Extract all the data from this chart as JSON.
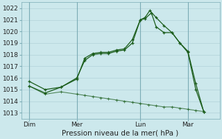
{
  "xlabel": "Pression niveau de la mer( hPa )",
  "bg_color": "#cce8ec",
  "grid_color": "#aacdd4",
  "line_color": "#1a5c1a",
  "ylim": [
    1012.5,
    1022.5
  ],
  "yticks": [
    1013,
    1014,
    1015,
    1016,
    1017,
    1018,
    1019,
    1020,
    1021,
    1022
  ],
  "xtick_labels": [
    "Dim",
    "Mer",
    "Lun",
    "Mar"
  ],
  "xtick_positions": [
    1,
    4,
    8,
    11
  ],
  "vline_positions": [
    1,
    4,
    8,
    11
  ],
  "xlim": [
    0.5,
    13.0
  ],
  "series1_x": [
    1,
    2,
    3,
    4,
    4.5,
    5,
    5.5,
    6,
    6.5,
    7,
    7.5,
    8,
    8.3,
    8.6,
    9,
    9.5,
    10,
    10.5,
    11,
    11.5,
    12
  ],
  "series1_y": [
    1015.7,
    1015.0,
    1015.2,
    1015.9,
    1017.7,
    1018.1,
    1018.2,
    1018.2,
    1018.4,
    1018.5,
    1019.3,
    1021.0,
    1021.2,
    1021.8,
    1021.2,
    1020.5,
    1019.9,
    1019.0,
    1018.3,
    1015.5,
    1013.1
  ],
  "series2_x": [
    1,
    2,
    3,
    4,
    4.5,
    5,
    5.5,
    6,
    6.5,
    7,
    7.5,
    8,
    8.3,
    8.7,
    9,
    9.5,
    10,
    10.5,
    11,
    11.5,
    12
  ],
  "series2_y": [
    1015.3,
    1014.7,
    1015.2,
    1016.0,
    1017.5,
    1018.0,
    1018.1,
    1018.1,
    1018.3,
    1018.4,
    1019.0,
    1021.0,
    1021.1,
    1021.6,
    1020.4,
    1019.9,
    1019.9,
    1019.0,
    1018.2,
    1015.0,
    1013.1
  ],
  "series3_x": [
    1,
    2,
    3,
    4,
    4.5,
    5,
    5.5,
    6,
    6.5,
    7,
    7.5,
    8,
    8.5,
    9,
    9.5,
    10,
    10.5,
    11,
    11.5,
    12
  ],
  "series3_y": [
    1015.3,
    1014.6,
    1014.8,
    1014.6,
    1014.5,
    1014.4,
    1014.3,
    1014.2,
    1014.1,
    1014.0,
    1013.9,
    1013.8,
    1013.7,
    1013.6,
    1013.5,
    1013.5,
    1013.4,
    1013.3,
    1013.2,
    1013.1
  ],
  "xlabel_fontsize": 7.5,
  "tick_fontsize": 6.5
}
